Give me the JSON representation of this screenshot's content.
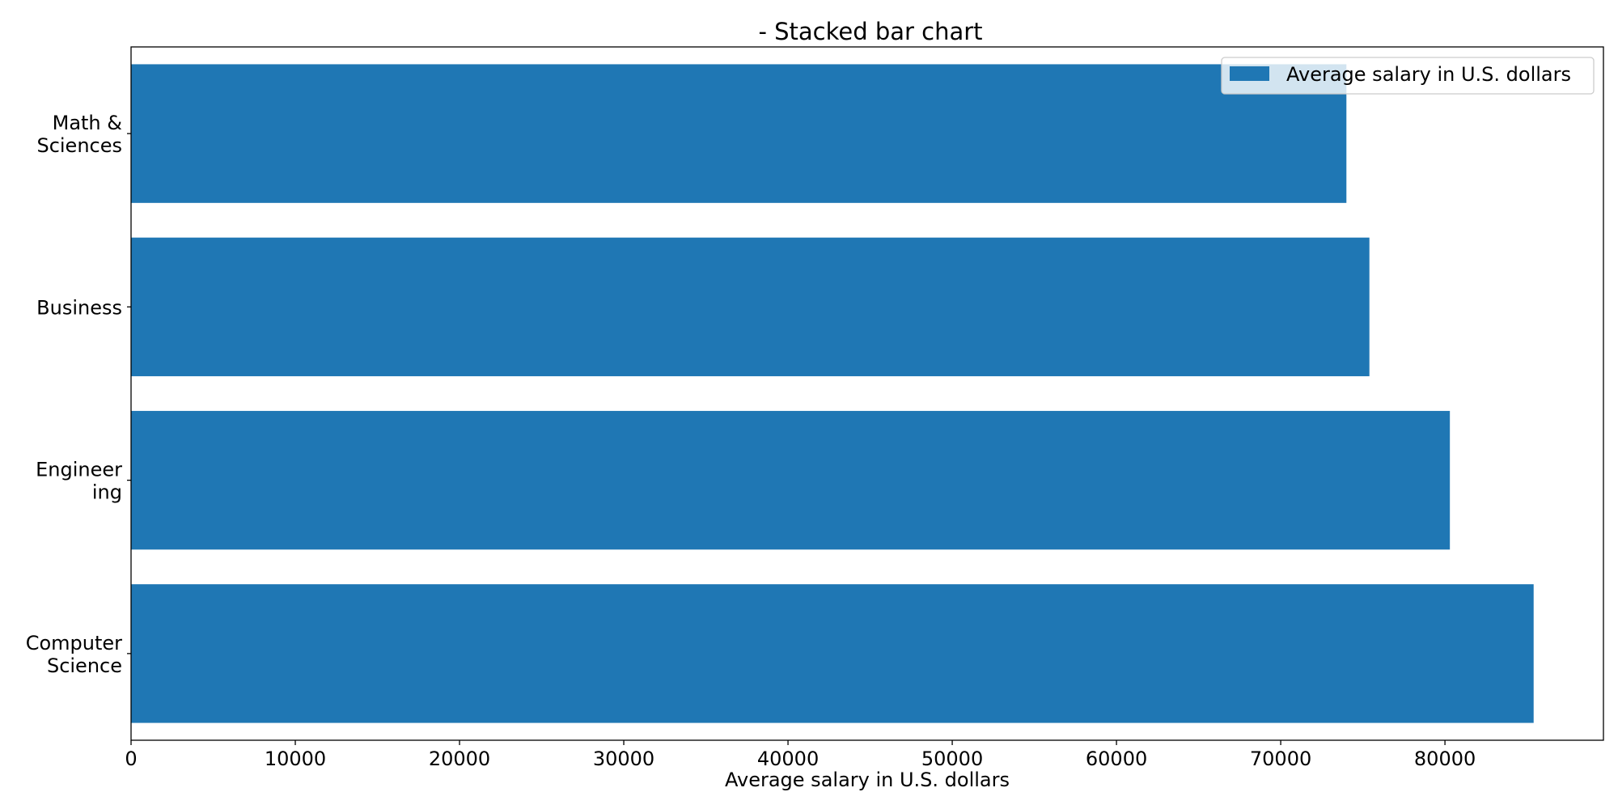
{
  "chart_data": {
    "type": "bar",
    "orientation": "horizontal",
    "title": "- Stacked bar chart",
    "xlabel": "Average salary in U.S. dollars",
    "ylabel": "",
    "categories": [
      [
        "Math &",
        "Sciences"
      ],
      [
        "Business"
      ],
      [
        "Engineer",
        "ing"
      ],
      [
        "Computer",
        "Science"
      ]
    ],
    "series": [
      {
        "name": "Average salary in U.S. dollars",
        "color": "#1f77b4",
        "values": [
          74000,
          75400,
          80300,
          85400
        ]
      }
    ],
    "xlim": [
      0,
      89650
    ],
    "xticks": [
      0,
      10000,
      20000,
      30000,
      40000,
      50000,
      60000,
      70000,
      80000
    ],
    "grid": false,
    "legend": {
      "position": "top-right"
    }
  }
}
